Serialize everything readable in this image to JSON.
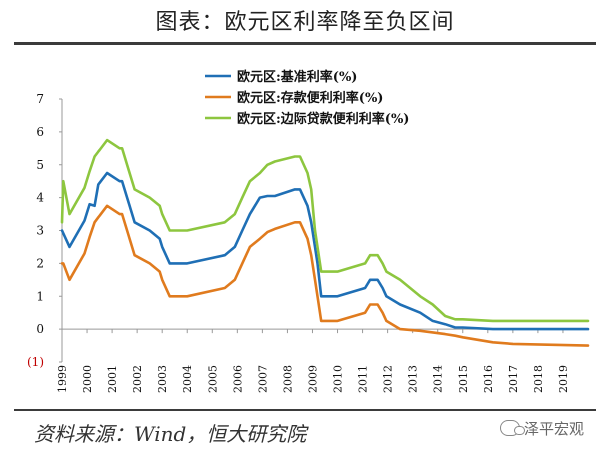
{
  "header": {
    "title": "图表：欧元区利率降至负区间"
  },
  "footer": {
    "source": "资料来源：Wind，恒大研究院",
    "watermark": "泽平宏观"
  },
  "chart_data": {
    "type": "line",
    "title": "图表：欧元区利率降至负区间",
    "xlabel": "",
    "ylabel": "",
    "ylim": [
      -1,
      7
    ],
    "xlim": [
      1999.0,
      2020.0
    ],
    "y_ticks": [
      "(1)",
      "0",
      "1",
      "2",
      "3",
      "4",
      "5",
      "6",
      "7"
    ],
    "x_ticks": [
      "1999",
      "2000",
      "2001",
      "2002",
      "2003",
      "2004",
      "2005",
      "2006",
      "2007",
      "2008",
      "2009",
      "2010",
      "2011",
      "2012",
      "2013",
      "2014",
      "2015",
      "2016",
      "2017",
      "2018",
      "2019"
    ],
    "legend_position": "top-center",
    "series": [
      {
        "name": "欧元区:基准利率(%)",
        "color": "#1f6fb5",
        "x": [
          1999.0,
          1999.3,
          1999.9,
          2000.1,
          2000.3,
          2000.45,
          2000.5,
          2000.8,
          2001.3,
          2001.4,
          2001.7,
          2001.9,
          2002.5,
          2002.9,
          2003.0,
          2003.3,
          2003.5,
          2004.0,
          2005.5,
          2005.9,
          2006.2,
          2006.5,
          2006.9,
          2007.2,
          2007.5,
          2008.3,
          2008.5,
          2008.8,
          2008.95,
          2009.1,
          2009.2,
          2009.35,
          2010.0,
          2011.1,
          2011.3,
          2011.6,
          2011.8,
          2011.95,
          2012.5,
          2013.3,
          2013.8,
          2014.3,
          2014.7,
          2015.0,
          2016.2,
          2020.0
        ],
        "values": [
          3.0,
          2.5,
          3.3,
          3.8,
          3.75,
          4.4,
          4.45,
          4.75,
          4.5,
          4.5,
          3.75,
          3.25,
          3.0,
          2.75,
          2.5,
          2.0,
          2.0,
          2.0,
          2.25,
          2.5,
          3.0,
          3.5,
          4.0,
          4.05,
          4.05,
          4.25,
          4.25,
          3.75,
          3.25,
          2.5,
          2.0,
          1.0,
          1.0,
          1.25,
          1.5,
          1.5,
          1.25,
          1.0,
          0.75,
          0.5,
          0.25,
          0.15,
          0.05,
          0.05,
          0.0,
          0.0
        ]
      },
      {
        "name": "欧元区:存款便利利率(%)",
        "color": "#e07b1e",
        "x": [
          1999.0,
          1999.05,
          1999.3,
          1999.9,
          2000.1,
          2000.3,
          2000.45,
          2000.5,
          2000.8,
          2001.3,
          2001.4,
          2001.7,
          2001.9,
          2002.5,
          2002.9,
          2003.0,
          2003.3,
          2003.5,
          2004.0,
          2005.5,
          2005.9,
          2006.2,
          2006.5,
          2006.9,
          2007.2,
          2007.5,
          2008.3,
          2008.5,
          2008.8,
          2008.95,
          2009.1,
          2009.2,
          2009.35,
          2010.0,
          2011.1,
          2011.3,
          2011.6,
          2011.8,
          2011.95,
          2012.5,
          2013.3,
          2013.8,
          2014.3,
          2014.7,
          2015.0,
          2016.2,
          2017.0,
          2020.0
        ],
        "values": [
          2.0,
          2.0,
          1.5,
          2.3,
          2.8,
          3.25,
          3.4,
          3.45,
          3.75,
          3.5,
          3.5,
          2.75,
          2.25,
          2.0,
          1.75,
          1.5,
          1.0,
          1.0,
          1.0,
          1.25,
          1.5,
          2.0,
          2.5,
          2.75,
          2.95,
          3.05,
          3.25,
          3.25,
          2.75,
          2.25,
          1.5,
          1.0,
          0.25,
          0.25,
          0.5,
          0.75,
          0.75,
          0.5,
          0.25,
          0.0,
          -0.05,
          -0.1,
          -0.15,
          -0.2,
          -0.25,
          -0.4,
          -0.45,
          -0.5
        ]
      },
      {
        "name": "欧元区:边际贷款便利利率(%)",
        "color": "#8dc63f",
        "x": [
          1999.0,
          1999.05,
          1999.3,
          1999.9,
          2000.1,
          2000.3,
          2000.45,
          2000.5,
          2000.8,
          2001.3,
          2001.4,
          2001.7,
          2001.9,
          2002.5,
          2002.9,
          2003.0,
          2003.3,
          2003.5,
          2004.0,
          2005.5,
          2005.9,
          2006.2,
          2006.5,
          2006.9,
          2007.2,
          2007.5,
          2008.3,
          2008.5,
          2008.8,
          2008.95,
          2009.1,
          2009.2,
          2009.35,
          2010.0,
          2011.1,
          2011.3,
          2011.6,
          2011.8,
          2011.95,
          2012.5,
          2013.3,
          2013.8,
          2014.3,
          2014.7,
          2015.0,
          2016.2,
          2020.0
        ],
        "values": [
          3.25,
          4.5,
          3.5,
          4.3,
          4.8,
          5.25,
          5.4,
          5.45,
          5.75,
          5.5,
          5.5,
          4.75,
          4.25,
          4.0,
          3.75,
          3.5,
          3.0,
          3.0,
          3.0,
          3.25,
          3.5,
          4.0,
          4.5,
          4.75,
          5.0,
          5.1,
          5.25,
          5.25,
          4.75,
          4.25,
          3.0,
          2.5,
          1.75,
          1.75,
          2.0,
          2.25,
          2.25,
          2.0,
          1.75,
          1.5,
          1.0,
          0.75,
          0.4,
          0.3,
          0.3,
          0.25,
          0.25
        ]
      }
    ]
  }
}
